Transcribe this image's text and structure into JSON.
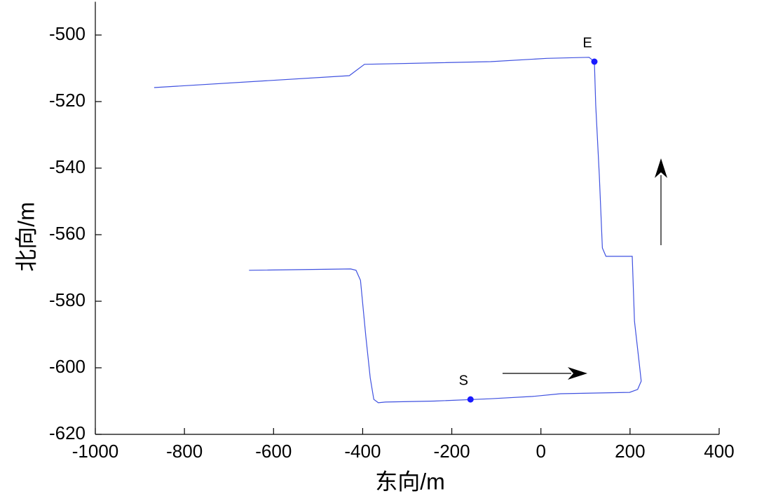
{
  "chart_data": {
    "type": "line",
    "x_label": "东向/m",
    "y_label": "北向/m",
    "xlim": [
      -1000,
      400
    ],
    "xticks": [
      -1000,
      -800,
      -600,
      -400,
      -200,
      0,
      200,
      400
    ],
    "ylim": [
      -620,
      -490
    ],
    "yticks": [
      -620,
      -600,
      -580,
      -560,
      -540,
      -520,
      -500
    ],
    "color": "#3f51e0",
    "x": [
      -655,
      -427,
      -415,
      -405,
      -393,
      -383,
      -375,
      -365,
      -349,
      -239,
      -113,
      -19,
      44,
      199,
      217,
      225,
      221,
      210,
      205,
      146,
      138,
      131,
      123,
      120,
      108,
      13,
      -113,
      -396,
      -430,
      -868
    ],
    "values": [
      -570.7,
      -570.3,
      -570.7,
      -573.7,
      -590.5,
      -603,
      -609.5,
      -610.5,
      -610.3,
      -610,
      -609.3,
      -608.6,
      -607.8,
      -607.4,
      -606.5,
      -604,
      -599,
      -586,
      -566.5,
      -566.5,
      -564,
      -542,
      -521,
      -508,
      -506.7,
      -507,
      -508,
      -508.8,
      -512.2,
      -515.8
    ],
    "points": [
      {
        "label": "S",
        "x": -158,
        "y": -609.5
      },
      {
        "label": "E",
        "x": 120,
        "y": -508
      }
    ],
    "point_color": "#1a1aff"
  }
}
